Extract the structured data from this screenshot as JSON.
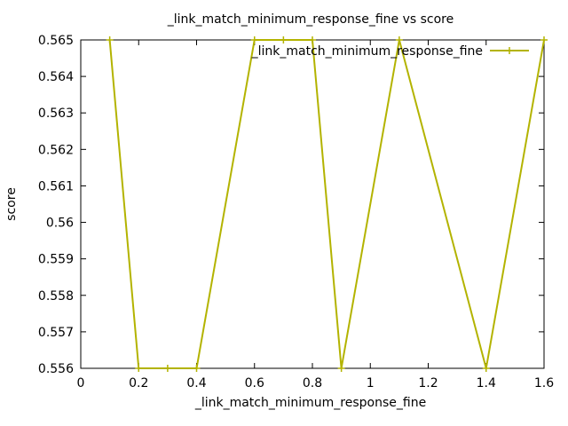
{
  "chart_data": {
    "type": "line",
    "title": "_link_match_minimum_response_fine vs score",
    "xlabel": "_link_match_minimum_response_fine",
    "ylabel": "score",
    "xlim": [
      0,
      1.6
    ],
    "ylim": [
      0.556,
      0.565
    ],
    "xticks": [
      0,
      0.2,
      0.4,
      0.6,
      0.8,
      1,
      1.2,
      1.4,
      1.6
    ],
    "xtick_labels": [
      "0",
      "0.2",
      "0.4",
      "0.6",
      "0.8",
      "1",
      "1.2",
      "1.4",
      "1.6"
    ],
    "yticks": [
      0.556,
      0.557,
      0.558,
      0.559,
      0.56,
      0.561,
      0.562,
      0.563,
      0.564,
      0.565
    ],
    "ytick_labels": [
      "0.556",
      "0.557",
      "0.558",
      "0.559",
      "0.56",
      "0.561",
      "0.562",
      "0.563",
      "0.564",
      "0.565"
    ],
    "grid": false,
    "legend_position": "top-right",
    "series": [
      {
        "name": "_link_match_minimum_response_fine",
        "color": "#b3b300",
        "marker": "plus",
        "x": [
          0.1,
          0.2,
          0.3,
          0.4,
          0.6,
          0.7,
          0.8,
          0.9,
          1.1,
          1.4,
          1.6
        ],
        "y": [
          0.565,
          0.556,
          0.556,
          0.556,
          0.565,
          0.565,
          0.565,
          0.556,
          0.565,
          0.556,
          0.565
        ]
      }
    ]
  }
}
